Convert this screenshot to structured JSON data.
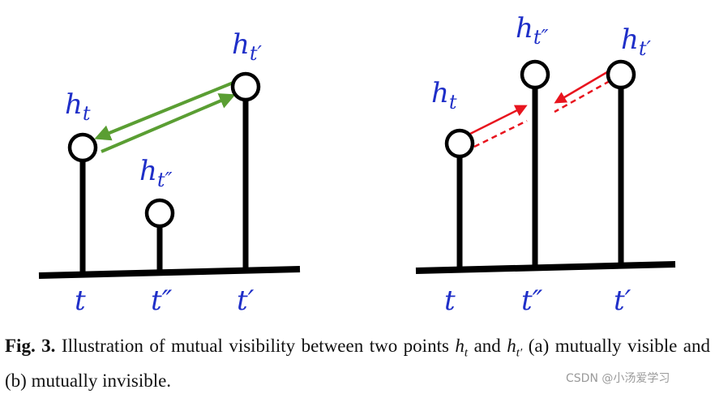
{
  "figure": {
    "panel_a": {
      "points": [
        {
          "base": "h",
          "sub": "t"
        },
        {
          "base": "h",
          "sub": "t″"
        },
        {
          "base": "h",
          "sub": "t′"
        }
      ],
      "axis_labels": [
        "t",
        "t″",
        "t′"
      ]
    },
    "panel_b": {
      "points": [
        {
          "base": "h",
          "sub": "t"
        },
        {
          "base": "h",
          "sub": "t″"
        },
        {
          "base": "h",
          "sub": "t′"
        }
      ],
      "axis_labels": [
        "t",
        "t″",
        "t′"
      ]
    }
  },
  "caption": {
    "label": "Fig. 3.",
    "text_1": "Illustration of mutual visibility between two points",
    "math_1": {
      "base": "h",
      "sub": "t"
    },
    "text_2": "and",
    "math_2": {
      "base": "h",
      "sub": "t′"
    },
    "text_3": "(a) mutually visible and (b) mutually invisible."
  },
  "watermark": "CSDN @小汤爱学习"
}
